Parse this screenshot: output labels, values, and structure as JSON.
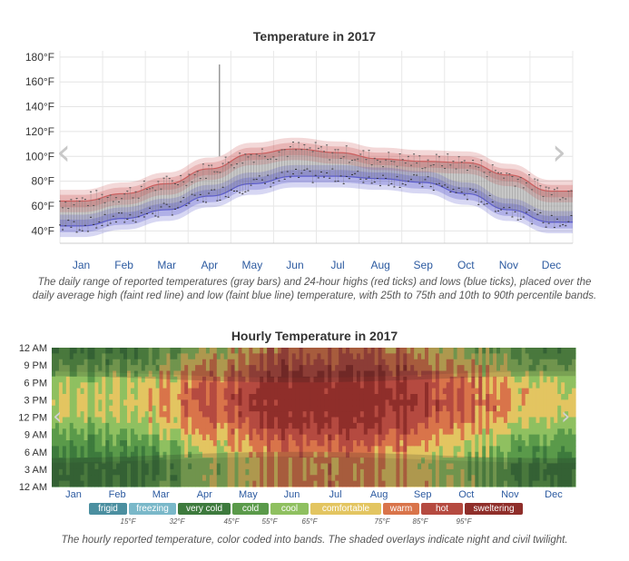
{
  "chart_data": [
    {
      "type": "line",
      "title": "Temperature in 2017",
      "xlabel": "",
      "ylabel": "",
      "ylim": [
        30,
        185
      ],
      "yticks": [
        "40°F",
        "60°F",
        "80°F",
        "100°F",
        "120°F",
        "140°F",
        "160°F",
        "180°F"
      ],
      "categories": [
        "Jan",
        "Feb",
        "Mar",
        "Apr",
        "May",
        "Jun",
        "Jul",
        "Aug",
        "Sep",
        "Oct",
        "Nov",
        "Dec"
      ],
      "grid": true,
      "series": [
        {
          "color": "#c84c4c",
          "values": [
            64,
            70,
            78,
            90,
            102,
            106,
            103,
            98,
            96,
            95,
            85,
            72
          ]
        },
        {
          "color": "#4a4ac8",
          "values": [
            44,
            50,
            57,
            68,
            78,
            84,
            84,
            82,
            79,
            70,
            57,
            47
          ]
        }
      ],
      "max_spike": 174,
      "caption": "The daily range of reported temperatures (gray bars) and 24-hour highs (red ticks) and lows (blue ticks), placed over the daily average high (faint red line) and low (faint blue line) temperature, with 25th to 75th and 10th to 90th percentile bands."
    },
    {
      "type": "heatmap",
      "title": "Hourly Temperature in 2017",
      "yticks": [
        "12 AM",
        "9 PM",
        "6 PM",
        "3 PM",
        "12 PM",
        "9 AM",
        "6 AM",
        "3 AM",
        "12 AM"
      ],
      "categories": [
        "Jan",
        "Feb",
        "Mar",
        "Apr",
        "May",
        "Jun",
        "Jul",
        "Aug",
        "Sep",
        "Oct",
        "Nov",
        "Dec"
      ],
      "legend": [
        {
          "label": "frigid",
          "color": "#4b8fa0"
        },
        {
          "label": "freezing",
          "color": "#7ab8c9"
        },
        {
          "label": "very cold",
          "color": "#3d7a3d"
        },
        {
          "label": "cold",
          "color": "#5a9a4a"
        },
        {
          "label": "cool",
          "color": "#8fc060"
        },
        {
          "label": "comfortable",
          "color": "#e3c561"
        },
        {
          "label": "warm",
          "color": "#d9744a"
        },
        {
          "label": "hot",
          "color": "#b54a40"
        },
        {
          "label": "sweltering",
          "color": "#8f2e2a"
        }
      ],
      "thresholds": [
        "15°F",
        "32°F",
        "45°F",
        "55°F",
        "65°F",
        "75°F",
        "85°F",
        "95°F"
      ],
      "caption": "The hourly reported temperature, color coded into bands. The shaded overlays indicate night and civil twilight."
    }
  ],
  "nav": {
    "prev": "‹",
    "next": "›"
  }
}
